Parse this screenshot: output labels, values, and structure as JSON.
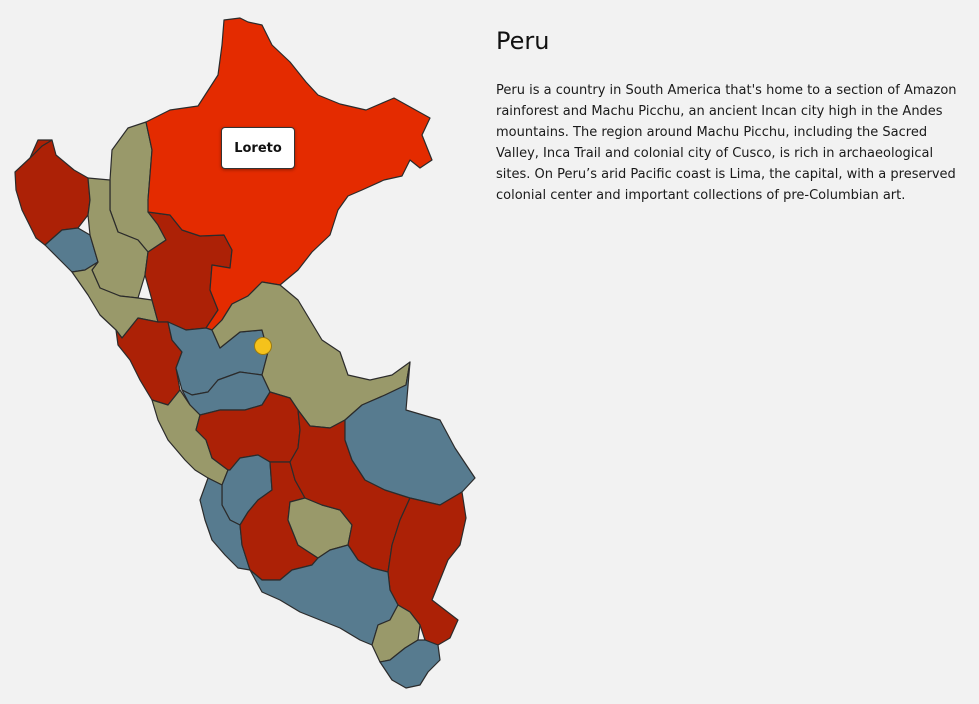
{
  "country": {
    "title": "Peru",
    "description": "Peru is a country in South America that's home to a section of Amazon rainforest and Machu Picchu, an ancient Incan city high in the Andes mountains. The region around Machu Picchu, including the Sacred Valley, Inca Trail and colonial city of Cusco, is rich in archaeological sites. On Peru’s arid Pacific coast is Lima, the capital, with a preserved colonial center and important collections of pre-Columbian art."
  },
  "map": {
    "highlighted_region_label": "Loreto",
    "colors": {
      "highlight": "#e42b00",
      "red": "#ac2106",
      "olive": "#99996a",
      "blue": "#577b8f",
      "marker": "#f5c21b",
      "border": "#2b2b2b",
      "background": "#f2f2f2"
    }
  }
}
